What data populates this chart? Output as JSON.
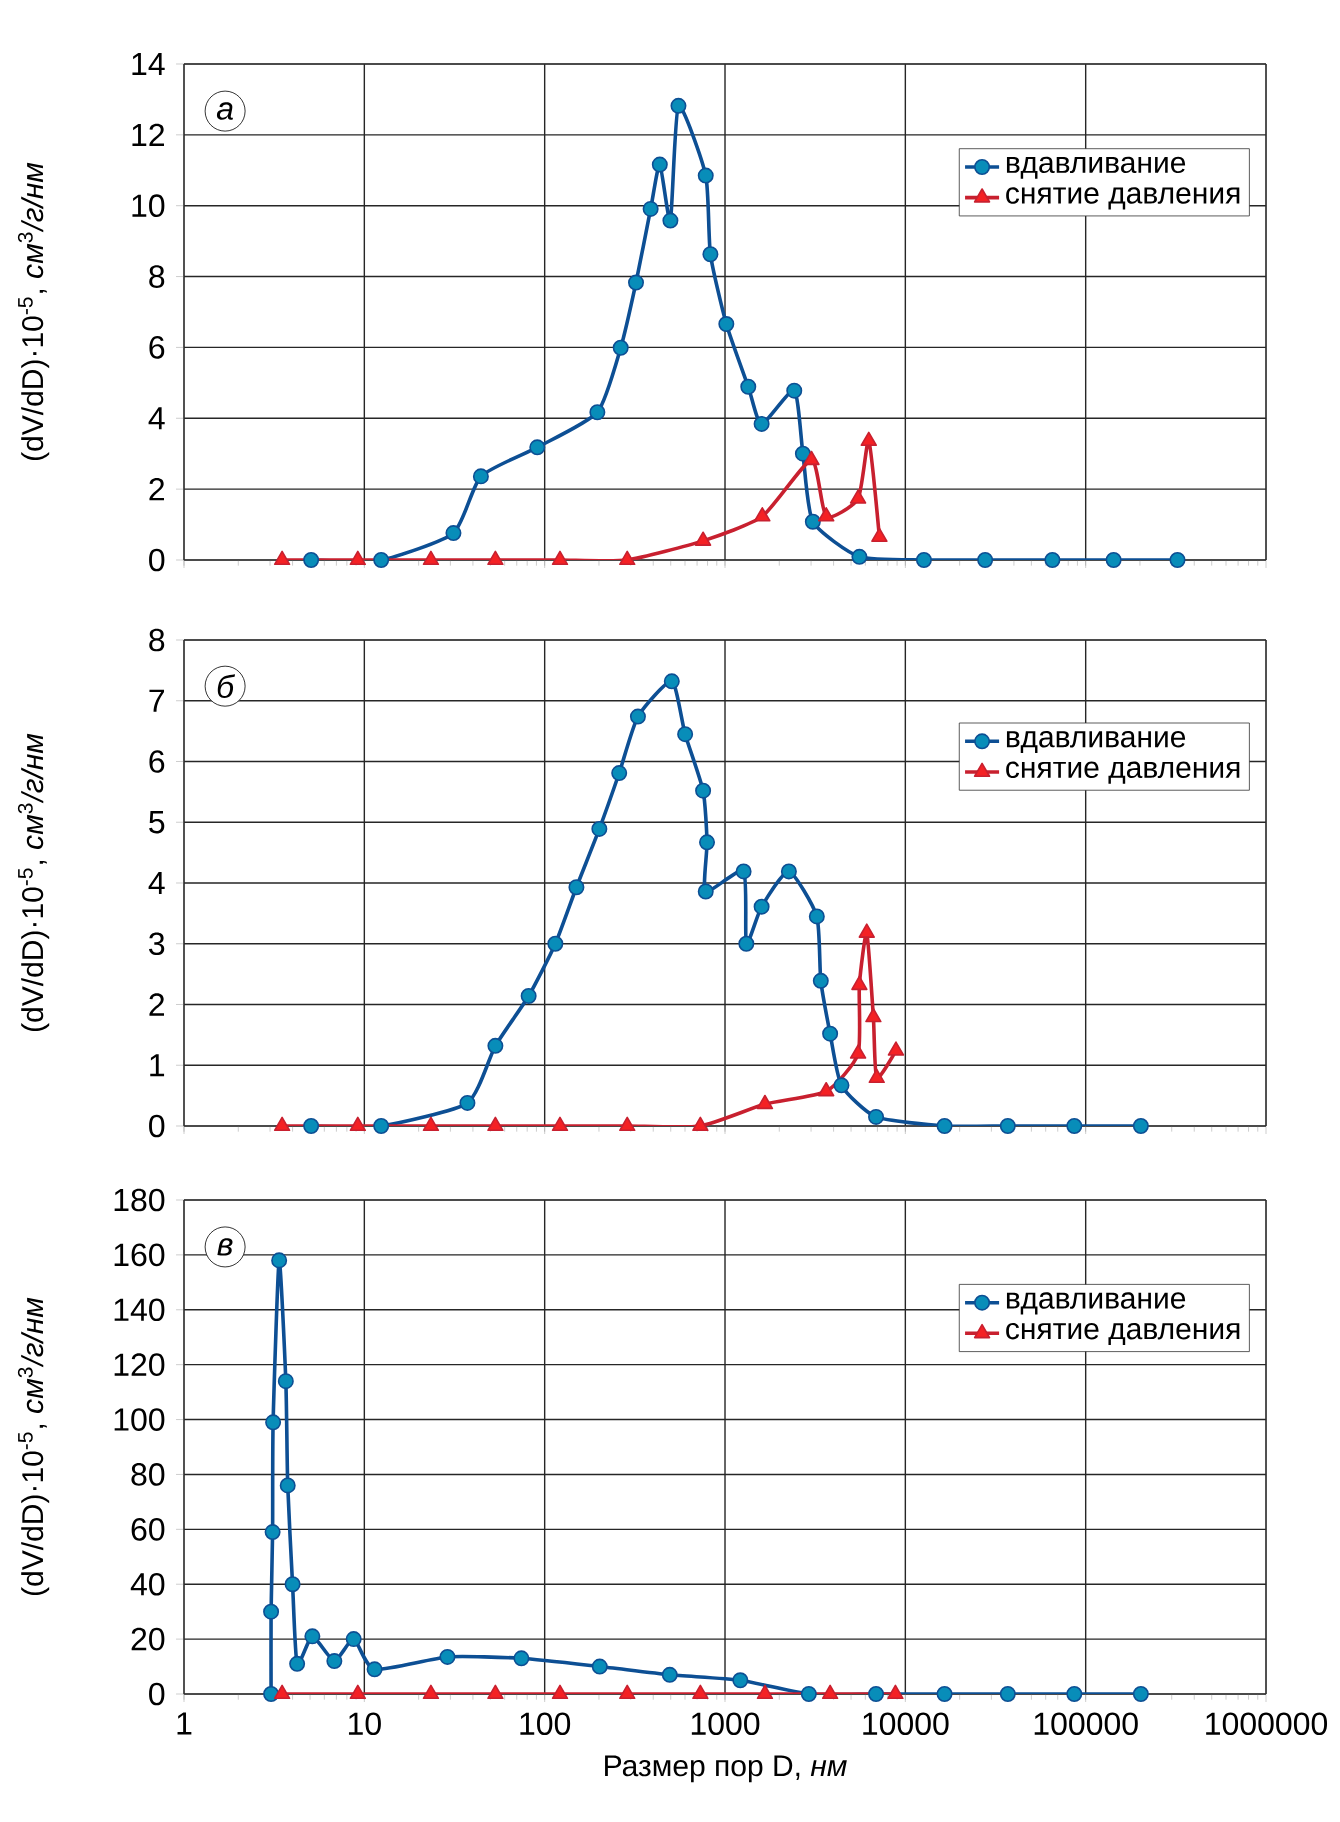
{
  "chart_data": [
    {
      "type": "line",
      "annotations": [
        "а"
      ],
      "ylabel": "(dV/dD)·10$^{-5}$, *см*$^{3}$*/г/нм*",
      "log": "x",
      "grid": true,
      "legend": "top right",
      "tick_labels": "y",
      "xlim": [
        1,
        1000000
      ],
      "xticks": [
        1,
        10,
        100,
        1000,
        10000,
        100000,
        1000000
      ],
      "ylim": [
        0,
        14
      ],
      "yticks": [
        0,
        2,
        4,
        6,
        8,
        10,
        12,
        14
      ],
      "series": [
        {
          "name": "вдавливание",
          "color": "#0d4f94",
          "marker": "circle",
          "x": [
            5.07,
            12.4,
            31.2,
            44.3,
            91,
            196,
            264,
            321,
            387,
            435,
            498,
            552,
            782,
            830,
            1017,
            1346,
            1596,
            2421,
            2704,
            3070,
            5564,
            12680,
            27700,
            65400,
            142900,
            323000
          ],
          "values": [
            0,
            0,
            0.76,
            2.36,
            3.18,
            4.17,
            5.99,
            7.83,
            9.91,
            11.16,
            9.58,
            12.82,
            10.85,
            8.63,
            6.66,
            4.89,
            3.84,
            4.78,
            3.0,
            1.08,
            0.09,
            0,
            0,
            0,
            0,
            0
          ]
        },
        {
          "name": "снятие давления",
          "color": "#c8202f",
          "marker": "triangle",
          "x": [
            3.5,
            9.2,
            23.4,
            53.3,
            121.6,
            287,
            756,
            1610,
            3017,
            3640,
            5470,
            6270,
            7180
          ],
          "values": [
            0,
            0,
            0,
            0,
            0,
            0,
            0.54,
            1.23,
            2.82,
            1.23,
            1.73,
            3.36,
            0.65
          ]
        }
      ]
    },
    {
      "type": "line",
      "annotations": [
        "б"
      ],
      "ylabel": "(dV/dD)·10$^{-5}$, *см*$^{3}$*/г/нм*",
      "log": "x",
      "grid": true,
      "legend": "top right",
      "tick_labels": "y",
      "xlim": [
        1,
        1000000
      ],
      "xticks": [
        1,
        10,
        100,
        1000,
        10000,
        100000,
        1000000
      ],
      "ylim": [
        0,
        8
      ],
      "yticks": [
        0,
        1,
        2,
        3,
        4,
        5,
        6,
        7,
        8
      ],
      "series": [
        {
          "name": "вдавливание",
          "color": "#0d4f94",
          "marker": "circle",
          "x": [
            5.07,
            12.4,
            37.3,
            53.3,
            81.5,
            114.6,
            150,
            201,
            259,
            329,
            507,
            601,
            756,
            795,
            782,
            1268,
            1313,
            1596,
            2261,
            3230,
            3398,
            3828,
            4424,
            6880,
            16500,
            37000,
            86500,
            202300
          ],
          "values": [
            0,
            0,
            0.38,
            1.32,
            2.14,
            3.0,
            3.93,
            4.89,
            5.81,
            6.74,
            7.32,
            6.45,
            5.52,
            4.67,
            3.86,
            4.19,
            3.0,
            3.61,
            4.19,
            3.45,
            2.39,
            1.52,
            0.67,
            0.15,
            0,
            0,
            0,
            0
          ]
        },
        {
          "name": "снятие давления",
          "color": "#c8202f",
          "marker": "triangle",
          "x": [
            3.5,
            9.2,
            23.4,
            53.3,
            121.6,
            287,
            730,
            1665,
            3640,
            5470,
            5560,
            6110,
            6650,
            6940,
            8870
          ],
          "values": [
            0,
            0,
            0,
            0,
            0,
            0,
            0,
            0.36,
            0.57,
            1.19,
            2.32,
            3.18,
            1.79,
            0.79,
            1.24
          ]
        }
      ]
    },
    {
      "type": "line",
      "annotations": [
        "в"
      ],
      "ylabel": "(dV/dD)·10$^{-5}$, *см*$^{3}$*/г/нм*",
      "xlabel": "Размер пор D, *нм*",
      "log": "x",
      "grid": true,
      "legend": "top right",
      "xlim": [
        1,
        1000000
      ],
      "xticks": [
        1,
        10,
        100,
        1000,
        10000,
        100000,
        1000000
      ],
      "ylim": [
        0,
        180
      ],
      "yticks": [
        0,
        20,
        40,
        60,
        80,
        100,
        120,
        140,
        160,
        180
      ],
      "series": [
        {
          "name": "вдавливание",
          "color": "#0d4f94",
          "marker": "circle",
          "x": [
            3.04,
            3.04,
            3.1,
            3.12,
            3.37,
            3.67,
            3.76,
            4.0,
            4.24,
            5.15,
            6.82,
            8.73,
            11.4,
            28.9,
            74.3,
            202,
            494,
            1216,
            2916,
            6880,
            16500,
            37000,
            86500,
            202300
          ],
          "values": [
            0,
            30,
            59,
            99,
            158,
            114,
            76,
            40,
            11,
            21,
            12,
            20,
            9,
            13.5,
            13,
            10,
            7,
            5,
            0,
            0,
            0,
            0,
            0,
            0
          ]
        },
        {
          "name": "снятие давления",
          "color": "#c8202f",
          "marker": "triangle",
          "x": [
            3.5,
            9.2,
            23.4,
            53.3,
            121.6,
            287,
            730,
            1665,
            3828,
            8810
          ],
          "values": [
            0,
            0,
            0,
            0,
            0,
            0,
            0,
            0,
            0,
            0
          ]
        }
      ]
    }
  ]
}
